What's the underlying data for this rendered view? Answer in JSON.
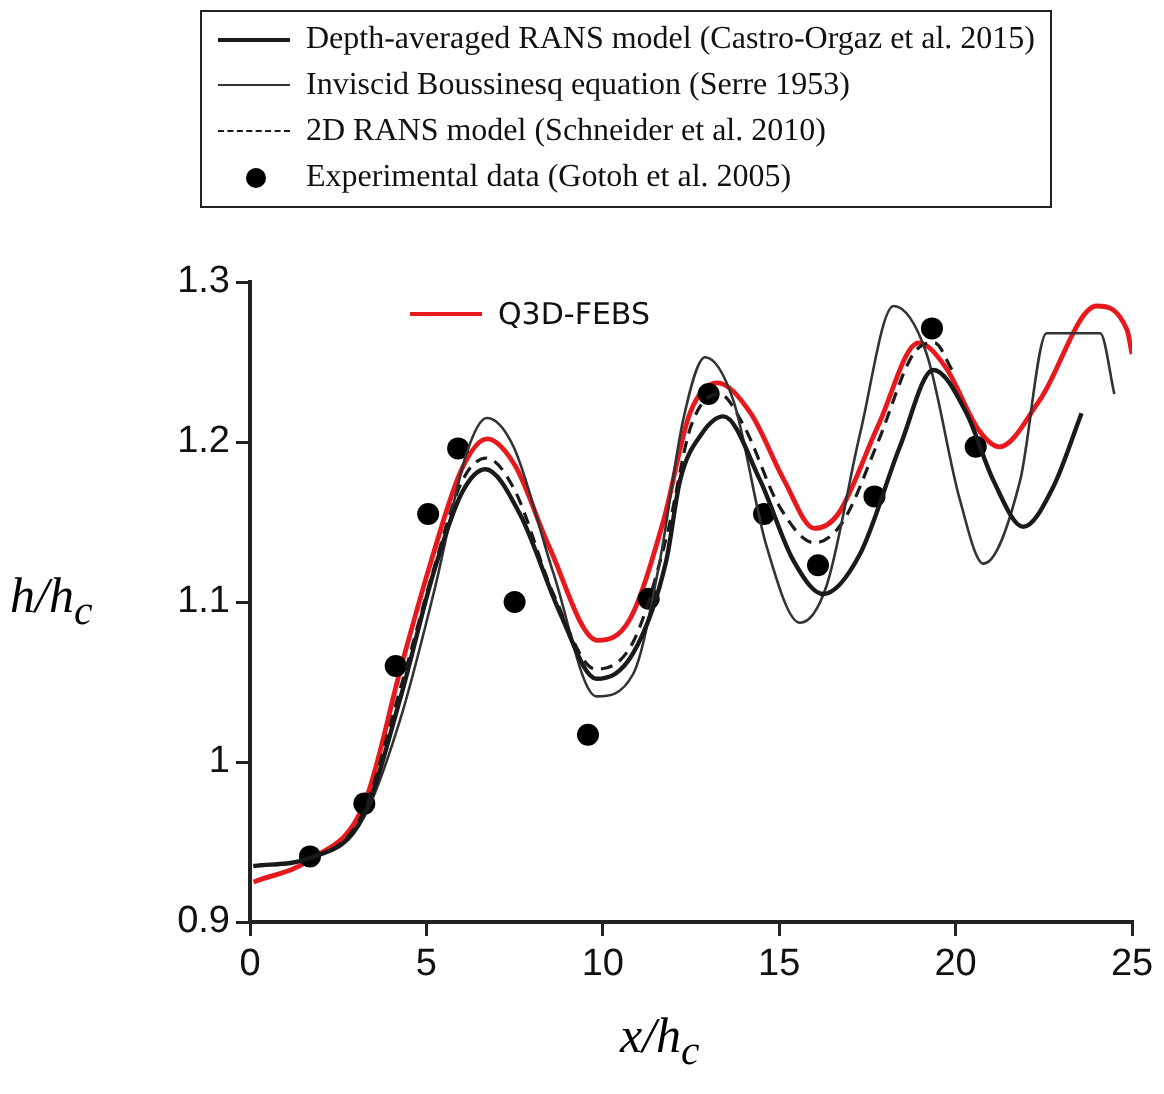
{
  "chart_data": {
    "type": "line",
    "xlabel": "x/h$_{c}$",
    "ylabel": "h/h$_{c}$",
    "xlim": [
      0,
      25
    ],
    "xticks": [
      0,
      5,
      10,
      15,
      20,
      25
    ],
    "ylim": [
      0.9,
      1.3
    ],
    "yticks": [
      0.9,
      1,
      1.1,
      1.2,
      1.3
    ],
    "legend": "top",
    "marker": "none",
    "series": [
      {
        "name": "Depth-averaged RANS model (Castro-Orgaz et al. 2015)",
        "color": "#1a1a1a",
        "x": [
          0.1,
          1.7,
          3.21,
          4.25,
          5.2,
          6.0,
          6.67,
          7.65,
          8.79,
          9.82,
          10.86,
          11.8,
          12.19,
          12.8,
          13.42,
          14.46,
          15.4,
          16.25,
          17.29,
          18.42,
          19.37,
          20.31,
          21.07,
          21.92,
          22.77,
          23.57
        ],
        "values": [
          0.935,
          0.94,
          0.966,
          1.039,
          1.118,
          1.168,
          1.183,
          1.155,
          1.093,
          1.052,
          1.068,
          1.126,
          1.176,
          1.205,
          1.216,
          1.176,
          1.126,
          1.105,
          1.13,
          1.197,
          1.245,
          1.218,
          1.176,
          1.147,
          1.172,
          1.218
        ]
      },
      {
        "name": "Inviscid Boussinesq equation (Serre 1953)",
        "color": "#333333",
        "x": [
          0.1,
          1.7,
          3.21,
          4.25,
          5.2,
          6.14,
          6.71,
          7.47,
          8.6,
          9.82,
          10.86,
          11.62,
          12.28,
          12.9,
          13.7,
          14.64,
          15.59,
          16.34,
          17.29,
          18.24,
          19.18,
          20.12,
          20.79,
          21.83,
          22.58,
          23.34,
          24.1,
          24.5
        ],
        "values": [
          0.935,
          0.94,
          0.965,
          1.026,
          1.105,
          1.193,
          1.215,
          1.197,
          1.118,
          1.041,
          1.055,
          1.126,
          1.214,
          1.253,
          1.226,
          1.135,
          1.087,
          1.11,
          1.205,
          1.285,
          1.255,
          1.164,
          1.124,
          1.176,
          1.268,
          null,
          1.268,
          1.23
        ]
      },
      {
        "name": "2D RANS model (Schneider et al. 2010)",
        "color": "#1a1a1a",
        "line_style": "dashed",
        "x": [
          0.1,
          1.7,
          3.2,
          4.25,
          5.2,
          6.0,
          6.7,
          7.5,
          8.6,
          9.8,
          10.86,
          11.8,
          12.5,
          13.3,
          14.0,
          15.0,
          16.0,
          16.8,
          17.8,
          18.8,
          19.4,
          19.9
        ],
        "values": [
          0.935,
          0.94,
          0.968,
          1.045,
          1.12,
          1.175,
          1.19,
          1.17,
          1.105,
          1.058,
          1.075,
          1.14,
          1.21,
          1.23,
          1.21,
          1.16,
          1.137,
          1.15,
          1.2,
          1.255,
          1.262,
          1.245
        ]
      },
      {
        "name": "Experimental data (Gotoh et al. 2005)",
        "type": "scatter",
        "marker": "circle",
        "color": "#000000",
        "x": [
          1.7,
          3.24,
          4.13,
          5.05,
          5.9,
          7.5,
          9.58,
          11.3,
          13.0,
          14.57,
          16.1,
          17.7,
          19.33,
          20.57
        ],
        "values": [
          0.941,
          0.974,
          1.06,
          1.155,
          1.196,
          1.1,
          1.017,
          1.102,
          1.23,
          1.155,
          1.123,
          1.166,
          1.271,
          1.197
        ]
      },
      {
        "name": "Q3D-FEBS",
        "color": "#e8191d",
        "x": [
          0.1,
          1.7,
          3.24,
          4.29,
          5.14,
          6.0,
          6.72,
          7.52,
          8.47,
          9.85,
          10.76,
          11.71,
          12.47,
          13.24,
          14.19,
          15.14,
          16.0,
          16.67,
          17.8,
          18.95,
          19.71,
          20.67,
          21.24,
          22.38,
          24.0,
          24.86,
          25.0
        ],
        "values": [
          0.925,
          0.939,
          0.974,
          1.06,
          1.126,
          1.183,
          1.202,
          1.185,
          1.135,
          1.076,
          1.089,
          1.15,
          1.218,
          1.237,
          1.218,
          1.176,
          1.146,
          1.155,
          1.21,
          1.262,
          1.247,
          1.207,
          1.197,
          1.226,
          1.285,
          1.27,
          1.255
        ]
      }
    ]
  }
}
